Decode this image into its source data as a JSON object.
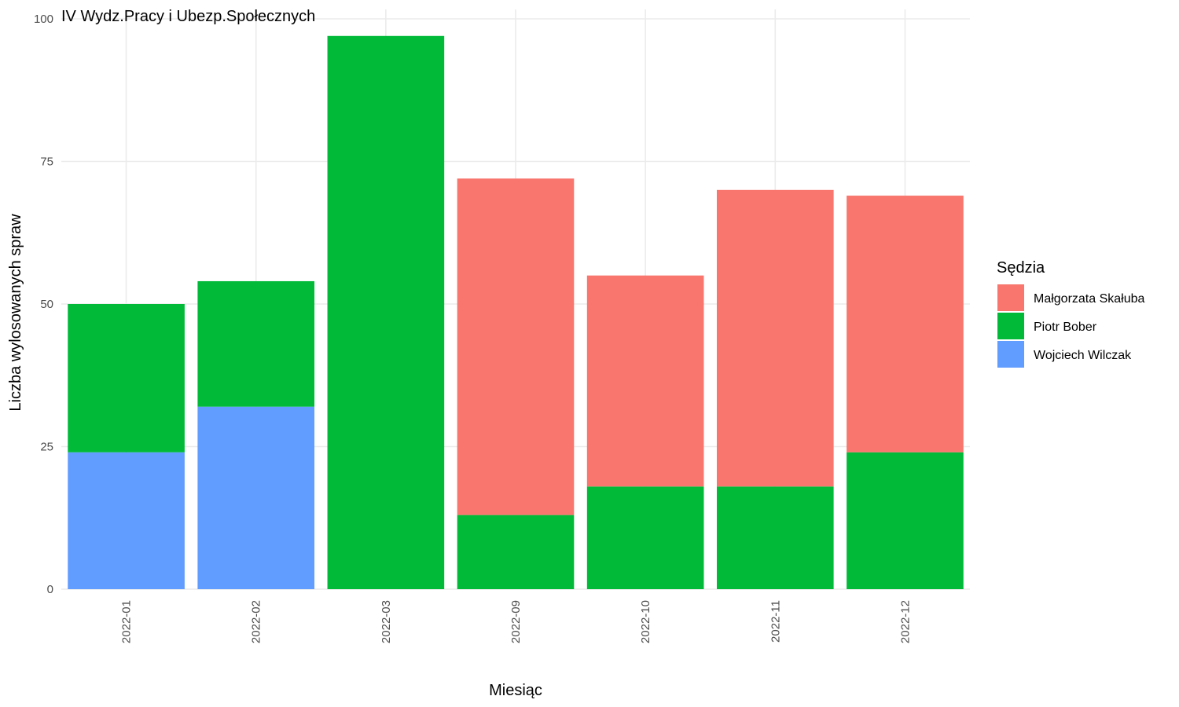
{
  "chart_data": {
    "type": "bar",
    "stacked": true,
    "title": "IV Wydz.Pracy i Ubezp.Społecznych",
    "xlabel": "Miesiąc",
    "ylabel": "Liczba wylosowanych spraw",
    "ylim": [
      0,
      100
    ],
    "yticks": [
      0,
      25,
      50,
      75,
      100
    ],
    "categories": [
      "2022-01",
      "2022-02",
      "2022-03",
      "2022-09",
      "2022-10",
      "2022-11",
      "2022-12"
    ],
    "legend_title": "Sędzia",
    "legend_position": "right",
    "grid": true,
    "series": [
      {
        "name": "Wojciech Wilczak",
        "color": "#619CFF",
        "values": [
          24,
          32,
          0,
          0,
          0,
          0,
          0
        ]
      },
      {
        "name": "Piotr Bober",
        "color": "#00BA38",
        "values": [
          26,
          22,
          97,
          13,
          18,
          18,
          24
        ]
      },
      {
        "name": "Małgorzata Skałuba",
        "color": "#F8766D",
        "values": [
          0,
          0,
          0,
          59,
          37,
          52,
          45
        ]
      }
    ],
    "legend_order": [
      "Małgorzata Skałuba",
      "Piotr Bober",
      "Wojciech Wilczak"
    ]
  }
}
